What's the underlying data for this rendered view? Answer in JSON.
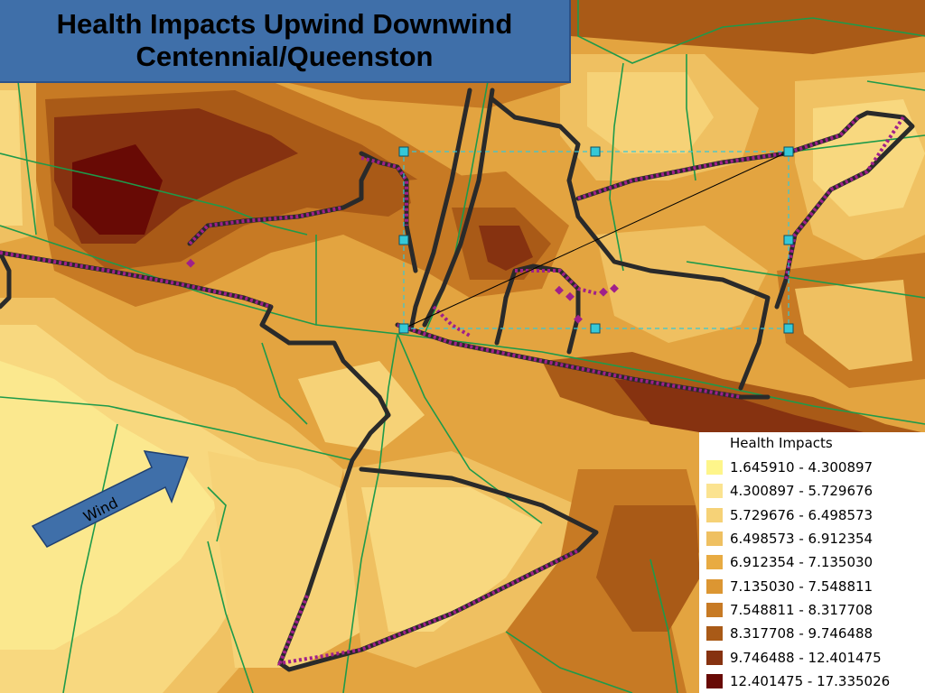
{
  "title": {
    "line1": "Health Impacts Upwind Downwind",
    "line2": "Centennial/Queenston"
  },
  "wind": {
    "label": "Wind",
    "direction": "north-east"
  },
  "legend": {
    "title": "Health Impacts",
    "classes": [
      {
        "label": "1.645910 - 4.300897",
        "color": "#fef58a"
      },
      {
        "label": "4.300897 - 5.729676",
        "color": "#fbe390"
      },
      {
        "label": "5.729676 - 6.498573",
        "color": "#f6d277"
      },
      {
        "label": "6.498573 - 6.912354",
        "color": "#efc061"
      },
      {
        "label": "6.912354 - 7.135030",
        "color": "#e8ab42"
      },
      {
        "label": "7.135030 - 7.548811",
        "color": "#dc9632"
      },
      {
        "label": "7.548811 - 8.317708",
        "color": "#c77a24"
      },
      {
        "label": "8.317708 - 9.746488",
        "color": "#a95a17"
      },
      {
        "label": "9.746488 - 12.401475",
        "color": "#863210"
      },
      {
        "label": "12.401475 - 17.335026",
        "color": "#680a05"
      }
    ]
  },
  "colors": {
    "title_bg": "#3f6fa9",
    "road_lines": "#1e9a4a",
    "route": "#2a2a2a",
    "points": "#a0208a",
    "selection_handles": "#35c8d8"
  }
}
